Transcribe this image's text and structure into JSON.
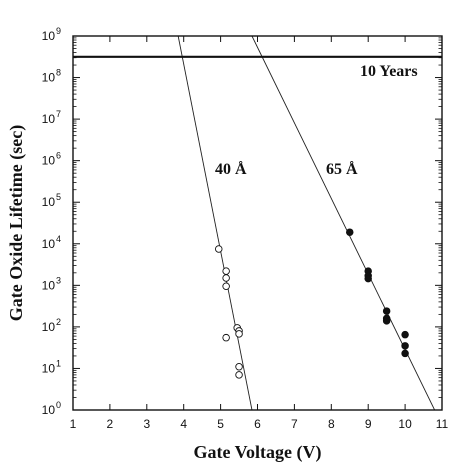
{
  "chart_data": {
    "type": "scatter",
    "xlabel": "Gate Voltage (V)",
    "ylabel": "Gate Oxide Lifetime (sec)",
    "xlim": [
      1,
      11
    ],
    "ylim": [
      1,
      1000000000
    ],
    "yscale": "log",
    "grid": false,
    "x_ticks": [
      "1",
      "2",
      "3",
      "4",
      "5",
      "6",
      "7",
      "8",
      "9",
      "10",
      "11"
    ],
    "y_ticks": [
      "10",
      "10",
      "10",
      "10",
      "10",
      "10",
      "10",
      "10",
      "10",
      "10"
    ],
    "y_tick_exponents": [
      "0",
      "1",
      "2",
      "3",
      "4",
      "5",
      "6",
      "7",
      "8",
      "9"
    ],
    "reference_line": {
      "label": "10 Years",
      "y": 315360000
    },
    "series": [
      {
        "name": "40 Å",
        "marker": "open-circle",
        "points": [
          {
            "x": 4.95,
            "y": 7500
          },
          {
            "x": 5.15,
            "y": 2200
          },
          {
            "x": 5.15,
            "y": 1500
          },
          {
            "x": 5.15,
            "y": 950
          },
          {
            "x": 5.15,
            "y": 55
          },
          {
            "x": 5.45,
            "y": 95
          },
          {
            "x": 5.5,
            "y": 80
          },
          {
            "x": 5.5,
            "y": 68
          },
          {
            "x": 5.5,
            "y": 11
          },
          {
            "x": 5.5,
            "y": 7
          }
        ],
        "fit": {
          "x": [
            3.85,
            5.85
          ],
          "y": [
            1000000000,
            1
          ]
        }
      },
      {
        "name": "65 Å",
        "marker": "filled-circle",
        "points": [
          {
            "x": 8.5,
            "y": 19000
          },
          {
            "x": 9.0,
            "y": 2200
          },
          {
            "x": 9.0,
            "y": 1700
          },
          {
            "x": 9.0,
            "y": 1450
          },
          {
            "x": 9.5,
            "y": 240
          },
          {
            "x": 9.5,
            "y": 160
          },
          {
            "x": 9.5,
            "y": 140
          },
          {
            "x": 10.0,
            "y": 65
          },
          {
            "x": 10.0,
            "y": 35
          },
          {
            "x": 10.0,
            "y": 23
          }
        ],
        "fit": {
          "x": [
            5.85,
            10.8
          ],
          "y": [
            1000000000,
            1
          ]
        }
      }
    ]
  }
}
